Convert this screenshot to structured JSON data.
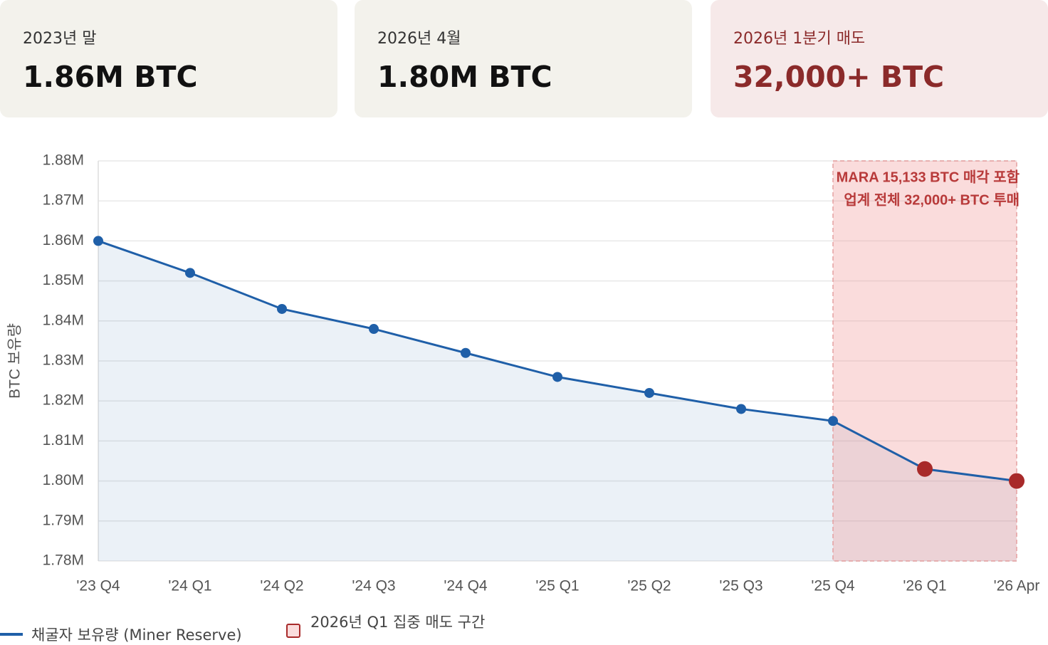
{
  "cards": [
    {
      "label": "2023년 말",
      "value": "1.86M BTC"
    },
    {
      "label": "2026년 4월",
      "value": "1.80M BTC"
    },
    {
      "label": "2026년 1분기 매도",
      "value": "32,000+ BTC"
    }
  ],
  "chart_data": {
    "type": "line",
    "y_label": "BTC 보유량",
    "categories": [
      "'23 Q4",
      "'24 Q1",
      "'24 Q2",
      "'24 Q3",
      "'24 Q4",
      "'25 Q1",
      "'25 Q2",
      "'25 Q3",
      "'25 Q4",
      "'26 Q1",
      "'26 Apr"
    ],
    "series": [
      {
        "name": "채굴자 보유량 (Miner Reserve)",
        "color": "#1f5fa8",
        "fill": "rgba(31,95,168,0.09)",
        "values": [
          1860000,
          1852000,
          1843000,
          1838000,
          1832000,
          1826000,
          1822000,
          1818000,
          1815000,
          1803000,
          1800000
        ],
        "point_colors": [
          "#1f5fa8",
          "#1f5fa8",
          "#1f5fa8",
          "#1f5fa8",
          "#1f5fa8",
          "#1f5fa8",
          "#1f5fa8",
          "#1f5fa8",
          "#1f5fa8",
          "#a82a2a",
          "#a82a2a"
        ]
      }
    ],
    "shaded_region": {
      "from": "'25 Q4",
      "to": "'26 Apr",
      "name": "2026년 Q1 집중 매도 구간",
      "color": "rgba(240,140,140,0.3)",
      "edge": "#e5a0a0"
    },
    "annotation": [
      "MARA 15,133 BTC 매각 포함",
      "업계 전체 32,000+ BTC 투매"
    ],
    "annotation_color": "#b83a3a",
    "ylim": [
      1780000,
      1880000
    ],
    "yticks": [
      {
        "value": 1780000,
        "label": "1.78M"
      },
      {
        "value": 1790000,
        "label": "1.79M"
      },
      {
        "value": 1800000,
        "label": "1.80M"
      },
      {
        "value": 1810000,
        "label": "1.81M"
      },
      {
        "value": 1820000,
        "label": "1.82M"
      },
      {
        "value": 1830000,
        "label": "1.83M"
      },
      {
        "value": 1840000,
        "label": "1.84M"
      },
      {
        "value": 1850000,
        "label": "1.85M"
      },
      {
        "value": 1860000,
        "label": "1.86M"
      },
      {
        "value": 1870000,
        "label": "1.87M"
      },
      {
        "value": 1880000,
        "label": "1.88M"
      }
    ],
    "grid": true
  }
}
